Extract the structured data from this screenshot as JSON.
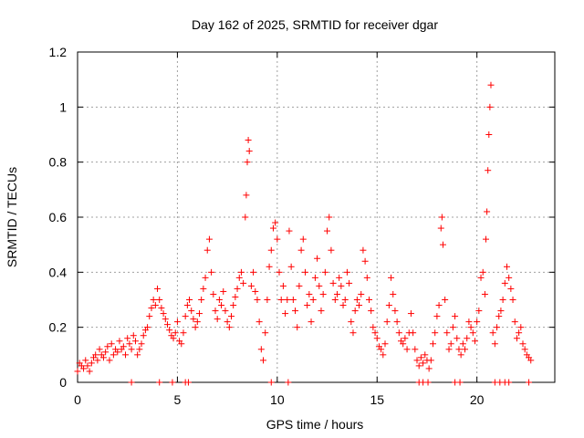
{
  "chart_data": {
    "type": "scatter",
    "title": "Day 162 of 2025, SRMTID for receiver dgar",
    "xlabel": "GPS time / hours",
    "ylabel": "SRMTID / TECUs",
    "xlim": [
      0,
      23.9
    ],
    "ylim": [
      0,
      1.2
    ],
    "xticks": [
      0,
      5,
      10,
      15,
      20
    ],
    "yticks": [
      0,
      0.2,
      0.4,
      0.6,
      0.8,
      1,
      1.2
    ],
    "ytick_labels": [
      "0",
      "0.2",
      "0.4",
      "0.6",
      "0.8",
      "1",
      "1.2"
    ],
    "marker": "+",
    "color": "#ff0000",
    "grid": true,
    "series": [
      {
        "name": "SRMTID",
        "points": [
          [
            0.0,
            0.04
          ],
          [
            0.1,
            0.07
          ],
          [
            0.2,
            0.06
          ],
          [
            0.3,
            0.05
          ],
          [
            0.4,
            0.08
          ],
          [
            0.5,
            0.06
          ],
          [
            0.6,
            0.04
          ],
          [
            0.7,
            0.07
          ],
          [
            0.8,
            0.09
          ],
          [
            0.9,
            0.1
          ],
          [
            1.0,
            0.08
          ],
          [
            1.1,
            0.12
          ],
          [
            1.2,
            0.1
          ],
          [
            1.3,
            0.09
          ],
          [
            1.4,
            0.11
          ],
          [
            1.5,
            0.13
          ],
          [
            1.6,
            0.08
          ],
          [
            1.7,
            0.14
          ],
          [
            1.8,
            0.1
          ],
          [
            1.9,
            0.12
          ],
          [
            2.0,
            0.11
          ],
          [
            2.1,
            0.15
          ],
          [
            2.2,
            0.12
          ],
          [
            2.3,
            0.13
          ],
          [
            2.4,
            0.1
          ],
          [
            2.5,
            0.16
          ],
          [
            2.6,
            0.14
          ],
          [
            2.7,
            0.12
          ],
          [
            2.8,
            0.17
          ],
          [
            2.9,
            0.15
          ],
          [
            3.0,
            0.1
          ],
          [
            3.1,
            0.12
          ],
          [
            3.2,
            0.14
          ],
          [
            3.3,
            0.17
          ],
          [
            3.4,
            0.19
          ],
          [
            3.5,
            0.2
          ],
          [
            3.6,
            0.24
          ],
          [
            3.7,
            0.27
          ],
          [
            3.8,
            0.3
          ],
          [
            3.9,
            0.28
          ],
          [
            4.0,
            0.34
          ],
          [
            4.1,
            0.3
          ],
          [
            4.2,
            0.27
          ],
          [
            4.3,
            0.25
          ],
          [
            4.4,
            0.23
          ],
          [
            4.5,
            0.21
          ],
          [
            4.6,
            0.19
          ],
          [
            4.7,
            0.17
          ],
          [
            4.8,
            0.16
          ],
          [
            4.9,
            0.18
          ],
          [
            5.0,
            0.22
          ],
          [
            5.1,
            0.15
          ],
          [
            5.2,
            0.14
          ],
          [
            5.3,
            0.18
          ],
          [
            5.4,
            0.24
          ],
          [
            5.5,
            0.28
          ],
          [
            5.6,
            0.3
          ],
          [
            5.7,
            0.26
          ],
          [
            5.8,
            0.23
          ],
          [
            5.9,
            0.2
          ],
          [
            6.0,
            0.22
          ],
          [
            6.1,
            0.25
          ],
          [
            6.2,
            0.3
          ],
          [
            6.3,
            0.34
          ],
          [
            6.4,
            0.38
          ],
          [
            6.5,
            0.48
          ],
          [
            6.6,
            0.52
          ],
          [
            6.7,
            0.4
          ],
          [
            6.8,
            0.32
          ],
          [
            6.9,
            0.26
          ],
          [
            7.0,
            0.23
          ],
          [
            7.1,
            0.3
          ],
          [
            7.2,
            0.28
          ],
          [
            7.3,
            0.33
          ],
          [
            7.4,
            0.26
          ],
          [
            7.5,
            0.22
          ],
          [
            7.6,
            0.2
          ],
          [
            7.7,
            0.24
          ],
          [
            7.8,
            0.28
          ],
          [
            7.9,
            0.31
          ],
          [
            8.0,
            0.34
          ],
          [
            8.1,
            0.38
          ],
          [
            8.2,
            0.4
          ],
          [
            8.3,
            0.36
          ],
          [
            8.4,
            0.6
          ],
          [
            8.45,
            0.68
          ],
          [
            8.5,
            0.8
          ],
          [
            8.55,
            0.88
          ],
          [
            8.6,
            0.84
          ],
          [
            8.7,
            0.35
          ],
          [
            8.8,
            0.4
          ],
          [
            8.9,
            0.33
          ],
          [
            9.0,
            0.3
          ],
          [
            9.1,
            0.22
          ],
          [
            9.2,
            0.12
          ],
          [
            9.3,
            0.08
          ],
          [
            9.4,
            0.18
          ],
          [
            9.5,
            0.3
          ],
          [
            9.6,
            0.42
          ],
          [
            9.7,
            0.48
          ],
          [
            9.8,
            0.56
          ],
          [
            9.9,
            0.58
          ],
          [
            10.0,
            0.52
          ],
          [
            10.1,
            0.4
          ],
          [
            10.2,
            0.3
          ],
          [
            10.3,
            0.35
          ],
          [
            10.4,
            0.25
          ],
          [
            10.5,
            0.3
          ],
          [
            10.6,
            0.55
          ],
          [
            10.7,
            0.42
          ],
          [
            10.8,
            0.3
          ],
          [
            10.9,
            0.26
          ],
          [
            11.0,
            0.2
          ],
          [
            11.1,
            0.35
          ],
          [
            11.2,
            0.48
          ],
          [
            11.3,
            0.52
          ],
          [
            11.4,
            0.4
          ],
          [
            11.5,
            0.28
          ],
          [
            11.6,
            0.32
          ],
          [
            11.7,
            0.22
          ],
          [
            11.8,
            0.3
          ],
          [
            11.9,
            0.38
          ],
          [
            12.0,
            0.45
          ],
          [
            12.1,
            0.35
          ],
          [
            12.2,
            0.26
          ],
          [
            12.3,
            0.32
          ],
          [
            12.4,
            0.4
          ],
          [
            12.5,
            0.55
          ],
          [
            12.6,
            0.6
          ],
          [
            12.7,
            0.48
          ],
          [
            12.8,
            0.36
          ],
          [
            12.9,
            0.3
          ],
          [
            13.0,
            0.32
          ],
          [
            13.1,
            0.38
          ],
          [
            13.2,
            0.35
          ],
          [
            13.3,
            0.28
          ],
          [
            13.4,
            0.3
          ],
          [
            13.5,
            0.4
          ],
          [
            13.6,
            0.36
          ],
          [
            13.7,
            0.22
          ],
          [
            13.8,
            0.18
          ],
          [
            13.9,
            0.26
          ],
          [
            14.0,
            0.3
          ],
          [
            14.1,
            0.28
          ],
          [
            14.2,
            0.32
          ],
          [
            14.3,
            0.48
          ],
          [
            14.4,
            0.44
          ],
          [
            14.5,
            0.38
          ],
          [
            14.6,
            0.3
          ],
          [
            14.7,
            0.26
          ],
          [
            14.8,
            0.2
          ],
          [
            14.9,
            0.18
          ],
          [
            15.0,
            0.16
          ],
          [
            15.1,
            0.13
          ],
          [
            15.2,
            0.12
          ],
          [
            15.3,
            0.1
          ],
          [
            15.4,
            0.14
          ],
          [
            15.5,
            0.22
          ],
          [
            15.6,
            0.28
          ],
          [
            15.7,
            0.38
          ],
          [
            15.8,
            0.32
          ],
          [
            15.9,
            0.26
          ],
          [
            16.0,
            0.22
          ],
          [
            16.1,
            0.18
          ],
          [
            16.2,
            0.15
          ],
          [
            16.3,
            0.14
          ],
          [
            16.4,
            0.16
          ],
          [
            16.5,
            0.12
          ],
          [
            16.6,
            0.18
          ],
          [
            16.7,
            0.25
          ],
          [
            16.8,
            0.18
          ],
          [
            16.9,
            0.12
          ],
          [
            17.0,
            0.08
          ],
          [
            17.1,
            0.06
          ],
          [
            17.2,
            0.09
          ],
          [
            17.3,
            0.07
          ],
          [
            17.4,
            0.1
          ],
          [
            17.5,
            0.08
          ],
          [
            17.6,
            0.05
          ],
          [
            17.7,
            0.08
          ],
          [
            17.8,
            0.14
          ],
          [
            17.9,
            0.18
          ],
          [
            18.0,
            0.24
          ],
          [
            18.1,
            0.28
          ],
          [
            18.2,
            0.56
          ],
          [
            18.25,
            0.6
          ],
          [
            18.3,
            0.5
          ],
          [
            18.4,
            0.3
          ],
          [
            18.5,
            0.18
          ],
          [
            18.6,
            0.12
          ],
          [
            18.7,
            0.14
          ],
          [
            18.8,
            0.2
          ],
          [
            18.9,
            0.24
          ],
          [
            19.0,
            0.16
          ],
          [
            19.1,
            0.12
          ],
          [
            19.2,
            0.1
          ],
          [
            19.3,
            0.14
          ],
          [
            19.4,
            0.12
          ],
          [
            19.5,
            0.16
          ],
          [
            19.6,
            0.22
          ],
          [
            19.7,
            0.2
          ],
          [
            19.8,
            0.18
          ],
          [
            19.9,
            0.15
          ],
          [
            20.0,
            0.22
          ],
          [
            20.1,
            0.26
          ],
          [
            20.2,
            0.38
          ],
          [
            20.3,
            0.4
          ],
          [
            20.4,
            0.32
          ],
          [
            20.45,
            0.52
          ],
          [
            20.5,
            0.62
          ],
          [
            20.55,
            0.77
          ],
          [
            20.6,
            0.9
          ],
          [
            20.65,
            1.0
          ],
          [
            20.7,
            1.08
          ],
          [
            20.8,
            0.18
          ],
          [
            20.9,
            0.14
          ],
          [
            21.0,
            0.2
          ],
          [
            21.1,
            0.24
          ],
          [
            21.2,
            0.26
          ],
          [
            21.3,
            0.3
          ],
          [
            21.4,
            0.36
          ],
          [
            21.5,
            0.42
          ],
          [
            21.6,
            0.38
          ],
          [
            21.7,
            0.34
          ],
          [
            21.8,
            0.3
          ],
          [
            21.9,
            0.22
          ],
          [
            22.0,
            0.16
          ],
          [
            22.1,
            0.18
          ],
          [
            22.2,
            0.2
          ],
          [
            22.3,
            0.14
          ],
          [
            22.4,
            0.12
          ],
          [
            22.5,
            0.1
          ],
          [
            22.6,
            0.09
          ],
          [
            22.7,
            0.08
          ]
        ]
      }
    ],
    "zero_markers_x": [
      2.7,
      4.1,
      4.75,
      5.4,
      5.55,
      9.7,
      10.55,
      17.1,
      17.3,
      17.55,
      18.9,
      19.15,
      20.9,
      21.15,
      21.4,
      21.6,
      22.6
    ]
  }
}
